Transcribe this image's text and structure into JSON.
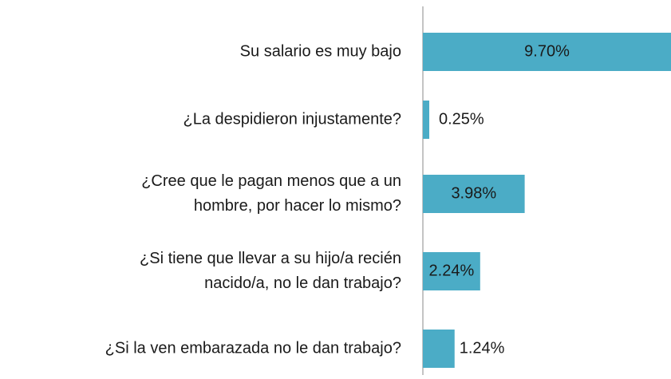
{
  "chart_data": {
    "type": "barh",
    "categories": [
      [
        "Su salario es muy bajo"
      ],
      [
        "¿La despidieron injustamente?"
      ],
      [
        "¿Cree que le pagan menos que a un",
        "hombre, por hacer lo mismo?"
      ],
      [
        "¿Si tiene que llevar a su hijo/a recién",
        "nacido/a, no le dan trabajo?"
      ],
      [
        "¿Si la ven embarazada no le dan trabajo?"
      ]
    ],
    "values": [
      9.7,
      0.25,
      3.98,
      2.24,
      1.24
    ],
    "value_labels": [
      "9.70%",
      "0.25%",
      "3.98%",
      "2.24%",
      "1.24%"
    ],
    "color": "#4bacc6",
    "xlim": [
      0,
      9.7
    ]
  }
}
